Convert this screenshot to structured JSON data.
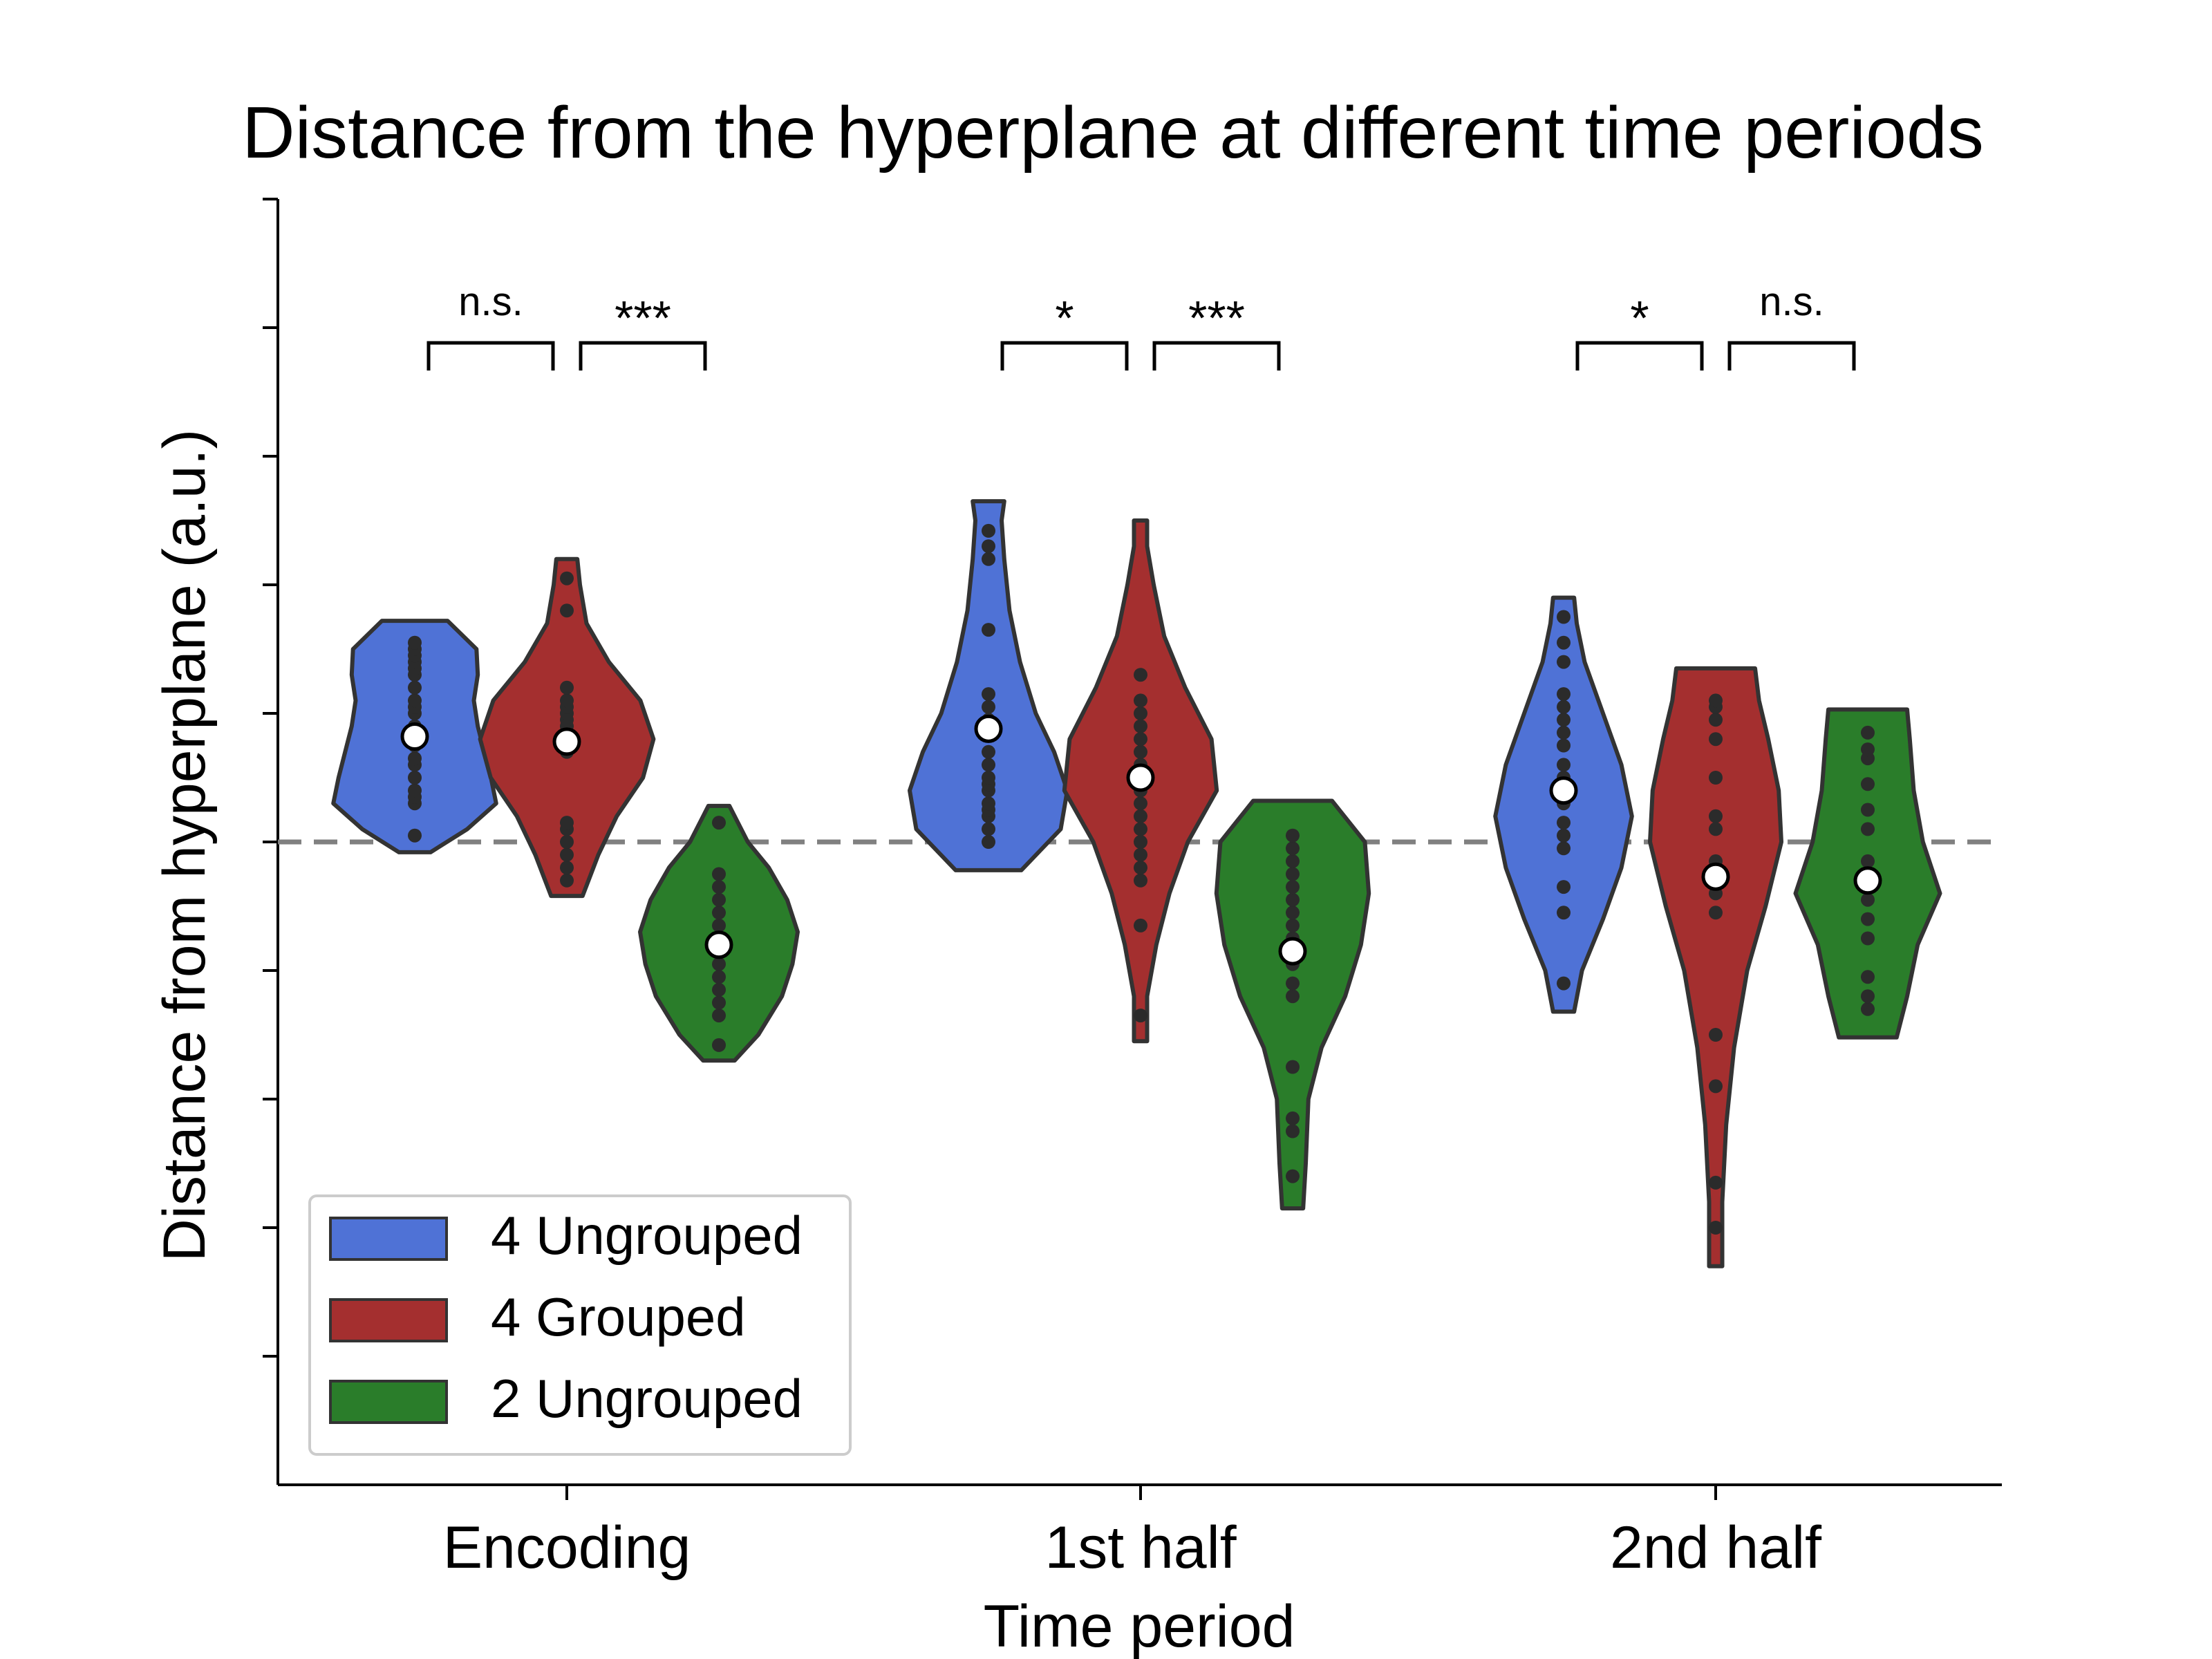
{
  "chart_data": {
    "type": "violin",
    "title": "Distance from the hyperplane at different time periods",
    "xlabel": "Time period",
    "ylabel": "Distance from hyperplane (a.u.)",
    "ylim": [
      -5,
      5
    ],
    "ytick_values": [
      -4,
      -3,
      -2,
      -1,
      0,
      1,
      2,
      3,
      4,
      5
    ],
    "ytick_labels_shown": false,
    "reference_line": {
      "y": 0,
      "style": "dashed",
      "color": "#808080"
    },
    "categories": [
      "Encoding",
      "1st half",
      "2nd half"
    ],
    "legend": {
      "placement": "lower-left"
    },
    "series": [
      {
        "name": "4 Ungrouped",
        "color": "#4f72d6"
      },
      {
        "name": "4 Grouped",
        "color": "#a42f2f"
      },
      {
        "name": "2 Ungrouped",
        "color": "#2a7d2a"
      }
    ],
    "groups": [
      {
        "category": "Encoding",
        "violins": [
          {
            "series": "4 Ungrouped",
            "median": 0.82,
            "min": -0.08,
            "max": 1.72,
            "profile": [
              [
                -0.08,
                0.12
              ],
              [
                0.1,
                0.4
              ],
              [
                0.3,
                0.62
              ],
              [
                0.5,
                0.58
              ],
              [
                0.7,
                0.53
              ],
              [
                0.9,
                0.48
              ],
              [
                1.1,
                0.45
              ],
              [
                1.3,
                0.48
              ],
              [
                1.5,
                0.47
              ],
              [
                1.65,
                0.32
              ],
              [
                1.72,
                0.25
              ]
            ],
            "points": [
              0.05,
              0.3,
              0.35,
              0.4,
              0.5,
              0.6,
              0.65,
              0.75,
              0.85,
              0.9,
              1.0,
              1.05,
              1.1,
              1.2,
              1.3,
              1.35,
              1.4,
              1.45,
              1.5,
              1.55
            ]
          },
          {
            "series": "4 Grouped",
            "median": 0.78,
            "min": -0.42,
            "max": 2.2,
            "profile": [
              [
                -0.42,
                0.12
              ],
              [
                -0.1,
                0.24
              ],
              [
                0.2,
                0.38
              ],
              [
                0.5,
                0.58
              ],
              [
                0.8,
                0.66
              ],
              [
                1.1,
                0.56
              ],
              [
                1.4,
                0.32
              ],
              [
                1.7,
                0.15
              ],
              [
                2.0,
                0.1
              ],
              [
                2.2,
                0.08
              ]
            ],
            "points": [
              -0.3,
              -0.2,
              -0.1,
              0.0,
              0.1,
              0.15,
              0.7,
              0.75,
              0.8,
              0.85,
              0.9,
              0.95,
              1.0,
              1.05,
              1.1,
              1.2,
              1.8,
              2.05
            ]
          },
          {
            "series": "2 Ungrouped",
            "median": -0.8,
            "min": -1.7,
            "max": 0.28,
            "profile": [
              [
                -1.7,
                0.12
              ],
              [
                -1.5,
                0.3
              ],
              [
                -1.2,
                0.48
              ],
              [
                -0.95,
                0.56
              ],
              [
                -0.7,
                0.6
              ],
              [
                -0.45,
                0.52
              ],
              [
                -0.2,
                0.38
              ],
              [
                0.0,
                0.22
              ],
              [
                0.28,
                0.08
              ]
            ],
            "points": [
              -1.58,
              -1.35,
              -1.25,
              -1.15,
              -1.05,
              -0.95,
              -0.85,
              -0.75,
              -0.65,
              -0.55,
              -0.45,
              -0.35,
              -0.25,
              0.15
            ]
          }
        ]
      },
      {
        "category": "1st half",
        "violins": [
          {
            "series": "4 Ungrouped",
            "median": 0.88,
            "min": -0.22,
            "max": 2.65,
            "profile": [
              [
                -0.22,
                0.25
              ],
              [
                0.1,
                0.55
              ],
              [
                0.4,
                0.6
              ],
              [
                0.7,
                0.5
              ],
              [
                1.0,
                0.36
              ],
              [
                1.4,
                0.24
              ],
              [
                1.8,
                0.16
              ],
              [
                2.2,
                0.12
              ],
              [
                2.5,
                0.1
              ],
              [
                2.65,
                0.12
              ]
            ],
            "points": [
              0.0,
              0.1,
              0.2,
              0.25,
              0.3,
              0.4,
              0.45,
              0.5,
              0.6,
              0.7,
              0.85,
              0.95,
              1.05,
              1.15,
              1.65,
              2.2,
              2.3,
              2.42
            ]
          },
          {
            "series": "4 Grouped",
            "median": 0.5,
            "min": -1.55,
            "max": 2.5,
            "profile": [
              [
                -1.55,
                0.05
              ],
              [
                -1.2,
                0.05
              ],
              [
                -0.8,
                0.12
              ],
              [
                -0.4,
                0.22
              ],
              [
                0.0,
                0.36
              ],
              [
                0.4,
                0.58
              ],
              [
                0.8,
                0.54
              ],
              [
                1.2,
                0.34
              ],
              [
                1.6,
                0.18
              ],
              [
                2.0,
                0.1
              ],
              [
                2.3,
                0.05
              ],
              [
                2.5,
                0.05
              ]
            ],
            "points": [
              -1.35,
              -0.65,
              -0.3,
              -0.2,
              -0.1,
              0.0,
              0.1,
              0.2,
              0.3,
              0.4,
              0.5,
              0.6,
              0.7,
              0.8,
              0.9,
              1.0,
              1.1,
              1.3
            ]
          },
          {
            "series": "2 Ungrouped",
            "median": -0.85,
            "min": -2.85,
            "max": 0.32,
            "profile": [
              [
                -2.85,
                0.08
              ],
              [
                -2.5,
                0.1
              ],
              [
                -2.0,
                0.12
              ],
              [
                -1.6,
                0.22
              ],
              [
                -1.2,
                0.4
              ],
              [
                -0.8,
                0.52
              ],
              [
                -0.4,
                0.58
              ],
              [
                0.0,
                0.55
              ],
              [
                0.32,
                0.3
              ]
            ],
            "points": [
              -2.6,
              -2.25,
              -2.15,
              -1.75,
              -1.2,
              -1.1,
              -0.95,
              -0.85,
              -0.75,
              -0.65,
              -0.55,
              -0.45,
              -0.35,
              -0.25,
              -0.15,
              -0.05,
              0.05
            ]
          }
        ]
      },
      {
        "category": "2nd half",
        "violins": [
          {
            "series": "4 Ungrouped",
            "median": 0.4,
            "min": -1.32,
            "max": 1.9,
            "profile": [
              [
                -1.32,
                0.08
              ],
              [
                -1.0,
                0.14
              ],
              [
                -0.6,
                0.3
              ],
              [
                -0.2,
                0.44
              ],
              [
                0.2,
                0.52
              ],
              [
                0.6,
                0.44
              ],
              [
                1.0,
                0.3
              ],
              [
                1.4,
                0.16
              ],
              [
                1.7,
                0.1
              ],
              [
                1.9,
                0.08
              ]
            ],
            "points": [
              -1.1,
              -0.55,
              -0.35,
              -0.05,
              0.05,
              0.15,
              0.3,
              0.5,
              0.6,
              0.75,
              0.85,
              0.95,
              1.05,
              1.15,
              1.4,
              1.55,
              1.75
            ]
          },
          {
            "series": "4 Grouped",
            "median": -0.27,
            "min": -3.3,
            "max": 1.35,
            "profile": [
              [
                -3.3,
                0.05
              ],
              [
                -2.8,
                0.05
              ],
              [
                -2.2,
                0.08
              ],
              [
                -1.6,
                0.14
              ],
              [
                -1.0,
                0.24
              ],
              [
                -0.5,
                0.38
              ],
              [
                0.0,
                0.5
              ],
              [
                0.4,
                0.48
              ],
              [
                0.8,
                0.4
              ],
              [
                1.1,
                0.33
              ],
              [
                1.35,
                0.3
              ]
            ],
            "points": [
              -3.0,
              -2.65,
              -1.9,
              -1.5,
              -0.55,
              -0.4,
              -0.15,
              0.1,
              0.2,
              0.5,
              0.8,
              0.95,
              1.05,
              1.1
            ]
          },
          {
            "series": "2 Ungrouped",
            "median": -0.3,
            "min": -1.52,
            "max": 1.03,
            "profile": [
              [
                -1.52,
                0.22
              ],
              [
                -1.2,
                0.3
              ],
              [
                -0.8,
                0.38
              ],
              [
                -0.4,
                0.55
              ],
              [
                0.0,
                0.42
              ],
              [
                0.4,
                0.35
              ],
              [
                0.8,
                0.32
              ],
              [
                1.03,
                0.3
              ]
            ],
            "points": [
              -1.3,
              -1.2,
              -1.05,
              -0.75,
              -0.6,
              -0.45,
              -0.35,
              -0.25,
              -0.15,
              0.1,
              0.25,
              0.45,
              0.65,
              0.72,
              0.85
            ]
          }
        ]
      }
    ],
    "significance": [
      {
        "category": "Encoding",
        "pair": [
          "4 Ungrouped",
          "4 Grouped"
        ],
        "label": "n.s."
      },
      {
        "category": "Encoding",
        "pair": [
          "4 Grouped",
          "2 Ungrouped"
        ],
        "label": "***"
      },
      {
        "category": "1st half",
        "pair": [
          "4 Ungrouped",
          "4 Grouped"
        ],
        "label": "*"
      },
      {
        "category": "1st half",
        "pair": [
          "4 Grouped",
          "2 Ungrouped"
        ],
        "label": "***"
      },
      {
        "category": "2nd half",
        "pair": [
          "4 Ungrouped",
          "4 Grouped"
        ],
        "label": "*"
      },
      {
        "category": "2nd half",
        "pair": [
          "4 Grouped",
          "2 Ungrouped"
        ],
        "label": "n.s."
      }
    ]
  }
}
